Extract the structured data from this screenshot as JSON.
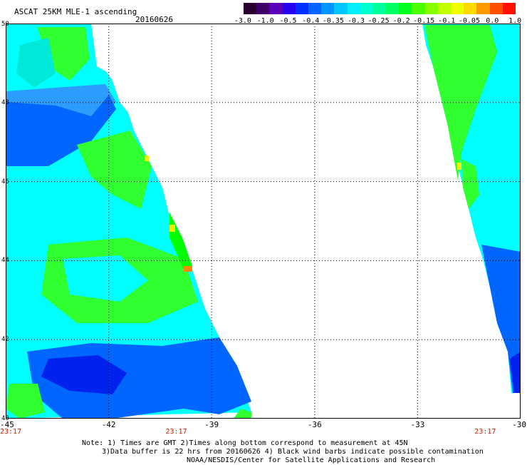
{
  "header": {
    "title": "ASCAT 25KM MLE-1 ascending",
    "date": "20160626"
  },
  "colorbar": {
    "colors": [
      "#2a0030",
      "#40006a",
      "#5a00b8",
      "#2600ee",
      "#0030ff",
      "#0066ff",
      "#0096ff",
      "#00c8ff",
      "#00f0ff",
      "#00ffd0",
      "#00ff9a",
      "#00ff60",
      "#00ff20",
      "#4cff00",
      "#88ff00",
      "#c0ff00",
      "#f0ff00",
      "#ffd800",
      "#ff9a00",
      "#ff5000",
      "#ff1000"
    ],
    "labels": [
      "-3.0",
      "-1.0",
      "-0.5",
      "-0.4",
      "-0.35",
      "-0.3",
      "-0.25",
      "-0.2",
      "-0.15",
      "-0.1",
      "-0.05",
      "0.0",
      "1.0"
    ]
  },
  "map": {
    "lon_ticks": [
      "-45",
      "-42",
      "-39",
      "-36",
      "-33",
      "-30"
    ],
    "lat_ticks": [
      "50",
      "48",
      "46",
      "44",
      "42",
      "40"
    ],
    "lon_range": [
      -45,
      -30
    ],
    "lat_range": [
      40,
      50
    ],
    "time_labels": [
      "23:17",
      "23:17",
      "23:17"
    ],
    "time_label_lons": [
      -45,
      -40,
      -31
    ],
    "fill_colors": {
      "cyan": "#00ffff",
      "aqua": "#00e8d8",
      "green": "#30ff30",
      "bright_green": "#00ff00",
      "blue": "#0066ff",
      "deep_blue": "#0022ee",
      "light_blue": "#2c9cff",
      "yellow": "#f0f000",
      "orange": "#ff8800"
    }
  },
  "notes": {
    "line1": "Note: 1) Times are GMT 2)Times along bottom correspond to measurement at 45N",
    "line2": "3)Data buffer is 22 hrs from 20160626 4) Black wind barbs indicate possible contamination",
    "line3": "NOAA/NESDIS/Center for Satellite Applications and Research"
  }
}
